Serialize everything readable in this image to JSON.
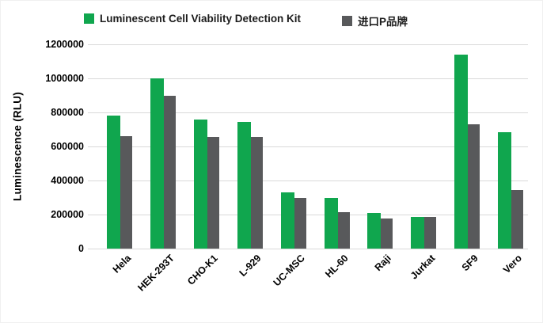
{
  "chart_data": {
    "type": "bar",
    "title": "",
    "ylabel": "Luminescence  (RLU)",
    "xlabel": "",
    "ylim": [
      0,
      1200000
    ],
    "yticks": [
      0,
      200000,
      400000,
      600000,
      800000,
      1000000,
      1200000
    ],
    "grid": true,
    "legend_position": "top",
    "background_color": "#ffffff",
    "gridline_color": "#d9d9d9",
    "categories": [
      "Hela",
      "HEK-293T",
      "CHO-K1",
      "L-929",
      "UC-MSC",
      "HL-60",
      "Raji",
      "Jurkat",
      "SF9",
      "Vero"
    ],
    "series": [
      {
        "name": "Luminescent Cell Viability Detection Kit",
        "color": "#10a64e",
        "values": [
          780000,
          1000000,
          760000,
          745000,
          330000,
          297000,
          210000,
          185000,
          1140000,
          685000
        ]
      },
      {
        "name": "进口P品牌",
        "color": "#58595b",
        "values": [
          660000,
          900000,
          655000,
          655000,
          300000,
          215000,
          175000,
          188000,
          730000,
          345000
        ]
      }
    ]
  }
}
